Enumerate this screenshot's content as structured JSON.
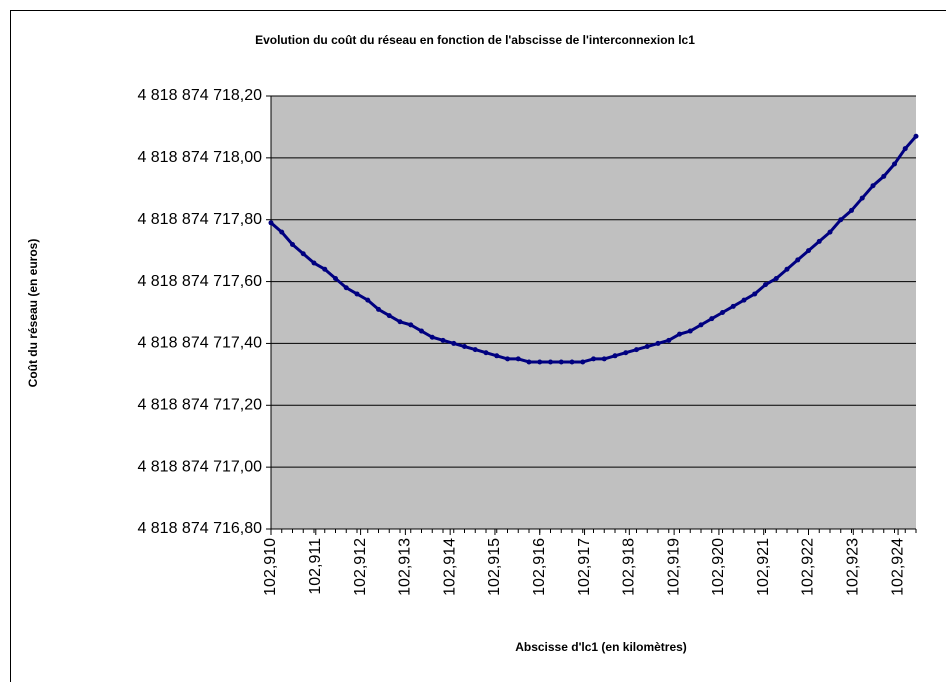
{
  "chart_data": {
    "type": "line",
    "title": "Evolution du coût du réseau en fonction de l'abscisse de l'interconnexion lc1",
    "x_label": "Abscisse d'lc1 (en kilomètres)",
    "y_label": "Coût du réseau (en euros)",
    "x": [
      102.91,
      102.91024,
      102.91048,
      102.91072,
      102.91096,
      102.9112,
      102.91144,
      102.91168,
      102.91192,
      102.91216,
      102.9124,
      102.91264,
      102.91288,
      102.91312,
      102.91336,
      102.9136,
      102.91384,
      102.91408,
      102.91432,
      102.91456,
      102.9148,
      102.91504,
      102.91528,
      102.91552,
      102.91576,
      102.916,
      102.91624,
      102.91648,
      102.91672,
      102.91696,
      102.9172,
      102.91744,
      102.91768,
      102.91792,
      102.91816,
      102.9184,
      102.91864,
      102.91888,
      102.91912,
      102.91936,
      102.9196,
      102.91984,
      102.92008,
      102.92032,
      102.92056,
      102.9208,
      102.92104,
      102.92128,
      102.92152,
      102.92176,
      102.922,
      102.92224,
      102.92248,
      102.92272,
      102.92296,
      102.9232,
      102.92344,
      102.92368,
      102.92392,
      102.92416,
      102.9244
    ],
    "series": [
      {
        "name": "Coût du réseau",
        "color": "#000080",
        "values": [
          4818874717.79,
          4818874717.76,
          4818874717.72,
          4818874717.69,
          4818874717.66,
          4818874717.64,
          4818874717.61,
          4818874717.58,
          4818874717.56,
          4818874717.54,
          4818874717.51,
          4818874717.49,
          4818874717.47,
          4818874717.46,
          4818874717.44,
          4818874717.42,
          4818874717.41,
          4818874717.4,
          4818874717.39,
          4818874717.38,
          4818874717.37,
          4818874717.36,
          4818874717.35,
          4818874717.35,
          4818874717.34,
          4818874717.34,
          4818874717.34,
          4818874717.34,
          4818874717.34,
          4818874717.34,
          4818874717.35,
          4818874717.35,
          4818874717.36,
          4818874717.37,
          4818874717.38,
          4818874717.39,
          4818874717.4,
          4818874717.41,
          4818874717.43,
          4818874717.44,
          4818874717.46,
          4818874717.48,
          4818874717.5,
          4818874717.52,
          4818874717.54,
          4818874717.56,
          4818874717.59,
          4818874717.61,
          4818874717.64,
          4818874717.67,
          4818874717.7,
          4818874717.73,
          4818874717.76,
          4818874717.8,
          4818874717.83,
          4818874717.87,
          4818874717.91,
          4818874717.94,
          4818874717.98,
          4818874718.03,
          4818874718.07
        ]
      }
    ],
    "xlim": [
      102.91,
      102.9244
    ],
    "xticks": [
      {
        "value": 102.91,
        "label": "102,910"
      },
      {
        "value": 102.911,
        "label": "102,911"
      },
      {
        "value": 102.912,
        "label": "102,912"
      },
      {
        "value": 102.913,
        "label": "102,913"
      },
      {
        "value": 102.914,
        "label": "102,914"
      },
      {
        "value": 102.915,
        "label": "102,915"
      },
      {
        "value": 102.916,
        "label": "102,916"
      },
      {
        "value": 102.917,
        "label": "102,917"
      },
      {
        "value": 102.918,
        "label": "102,918"
      },
      {
        "value": 102.919,
        "label": "102,919"
      },
      {
        "value": 102.92,
        "label": "102,920"
      },
      {
        "value": 102.921,
        "label": "102,921"
      },
      {
        "value": 102.922,
        "label": "102,922"
      },
      {
        "value": 102.923,
        "label": "102,923"
      },
      {
        "value": 102.924,
        "label": "102,924"
      }
    ],
    "ylim": [
      4818874716.8,
      4818874718.2
    ],
    "yticks": [
      {
        "value": 4818874716.8,
        "label": "4 818 874 716,80"
      },
      {
        "value": 4818874717.0,
        "label": "4 818 874 717,00"
      },
      {
        "value": 4818874717.2,
        "label": "4 818 874 717,20"
      },
      {
        "value": 4818874717.4,
        "label": "4 818 874 717,40"
      },
      {
        "value": 4818874717.6,
        "label": "4 818 874 717,60"
      },
      {
        "value": 4818874717.8,
        "label": "4 818 874 717,80"
      },
      {
        "value": 4818874718.0,
        "label": "4 818 874 718,00"
      },
      {
        "value": 4818874718.2,
        "label": "4 818 874 718,20"
      }
    ],
    "grid": true,
    "plot_background": "#c0c0c0"
  }
}
